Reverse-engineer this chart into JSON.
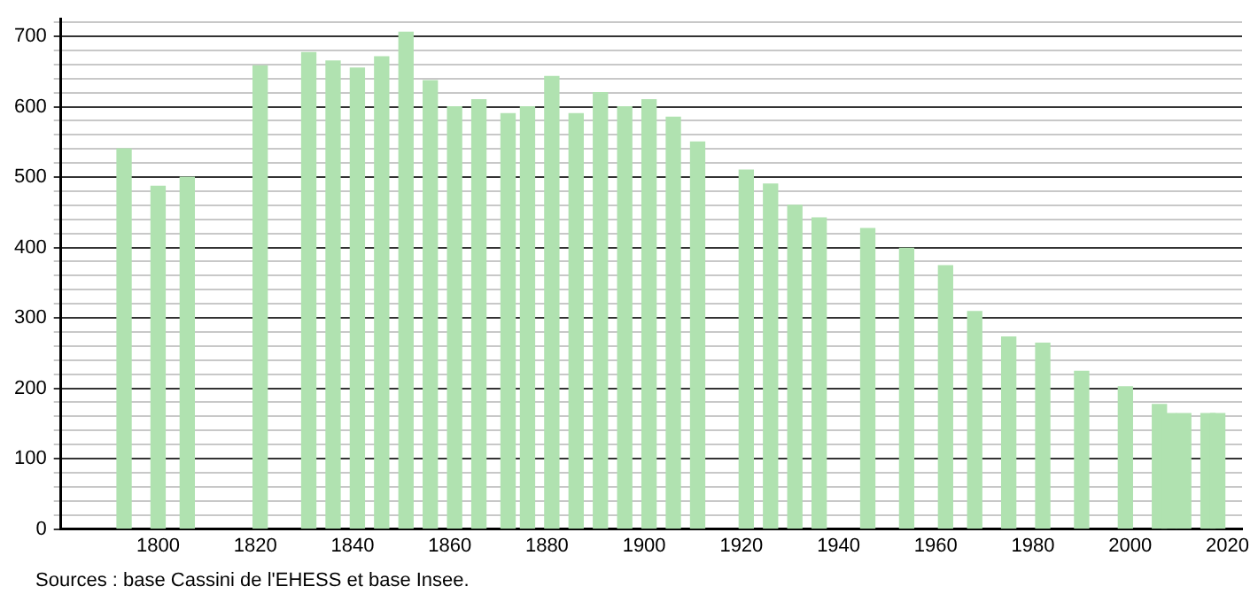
{
  "chart_data": {
    "type": "bar",
    "color": "#b0e2b0",
    "x": [
      1793,
      1800,
      1806,
      1821,
      1831,
      1836,
      1841,
      1846,
      1851,
      1856,
      1861,
      1866,
      1872,
      1876,
      1881,
      1886,
      1891,
      1896,
      1901,
      1906,
      1911,
      1921,
      1926,
      1931,
      1936,
      1946,
      1954,
      1962,
      1968,
      1975,
      1982,
      1990,
      1999,
      2006,
      2008,
      2011,
      2016,
      2018
    ],
    "values": [
      540,
      487,
      500,
      658,
      677,
      665,
      655,
      671,
      706,
      637,
      600,
      610,
      590,
      600,
      643,
      590,
      620,
      600,
      610,
      585,
      550,
      510,
      490,
      460,
      442,
      427,
      399,
      374,
      309,
      273,
      264,
      224,
      202,
      177,
      164,
      164,
      164,
      164
    ],
    "xlim": [
      1780,
      2023
    ],
    "xticks": [
      1800,
      1820,
      1840,
      1860,
      1880,
      1900,
      1920,
      1940,
      1960,
      1980,
      2000,
      2020
    ],
    "ylim": [
      0,
      725
    ],
    "yticks": [
      0,
      {
        "value": 20,
        "label": null
      },
      {
        "value": 40,
        "label": null
      },
      {
        "value": 60,
        "label": null
      },
      {
        "value": 80,
        "label": null
      },
      100,
      {
        "value": 120,
        "label": null
      },
      {
        "value": 140,
        "label": null
      },
      {
        "value": 160,
        "label": null
      },
      {
        "value": 180,
        "label": null
      },
      200,
      {
        "value": 220,
        "label": null
      },
      {
        "value": 240,
        "label": null
      },
      {
        "value": 260,
        "label": null
      },
      {
        "value": 280,
        "label": null
      },
      300,
      {
        "value": 320,
        "label": null
      },
      {
        "value": 340,
        "label": null
      },
      {
        "value": 360,
        "label": null
      },
      {
        "value": 380,
        "label": null
      },
      400,
      {
        "value": 420,
        "label": null
      },
      {
        "value": 440,
        "label": null
      },
      {
        "value": 460,
        "label": null
      },
      {
        "value": 480,
        "label": null
      },
      500,
      {
        "value": 520,
        "label": null
      },
      {
        "value": 540,
        "label": null
      },
      {
        "value": 560,
        "label": null
      },
      {
        "value": 580,
        "label": null
      },
      600,
      {
        "value": 620,
        "label": null
      },
      {
        "value": 640,
        "label": null
      },
      {
        "value": 660,
        "label": null
      },
      {
        "value": 680,
        "label": null
      },
      700,
      {
        "value": 720,
        "label": null
      }
    ],
    "grid": "y",
    "legend": false,
    "annotations": [
      "Sources : base Cassini de l'EHESS et base Insee."
    ]
  }
}
